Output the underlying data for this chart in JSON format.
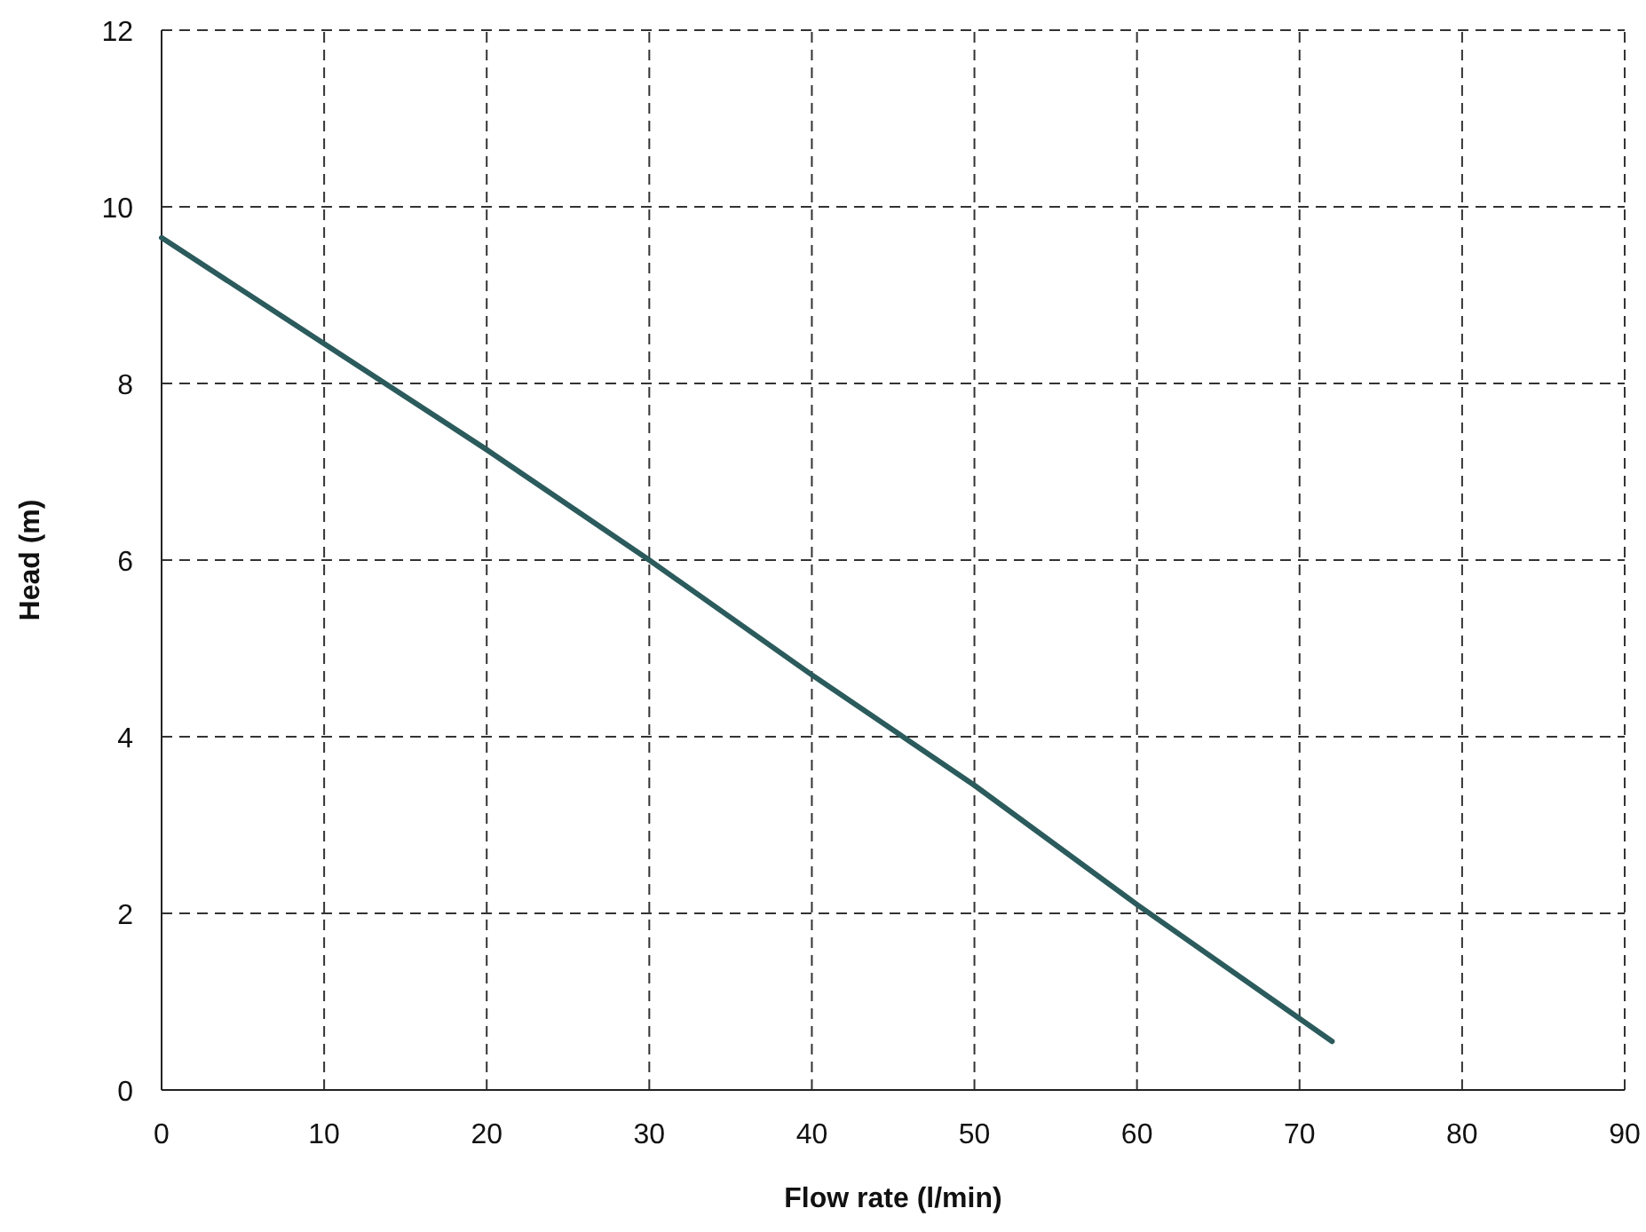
{
  "chart_data": {
    "type": "line",
    "xlabel": "Flow rate (l/min)",
    "ylabel": "Head (m)",
    "x": [
      0,
      10,
      20,
      30,
      40,
      50,
      60,
      72
    ],
    "series": [
      {
        "color": "#2b5b5c",
        "values": [
          9.65,
          8.45,
          7.25,
          6.0,
          4.7,
          3.45,
          2.1,
          0.55
        ]
      }
    ],
    "xlim": [
      0,
      90
    ],
    "xticks": [
      0,
      10,
      20,
      30,
      40,
      50,
      60,
      70,
      80,
      90
    ],
    "ylim": [
      0,
      12
    ],
    "yticks": [
      0,
      2,
      4,
      6,
      8,
      10,
      12
    ],
    "grid": true,
    "marker": "none",
    "line_style": "solid"
  }
}
